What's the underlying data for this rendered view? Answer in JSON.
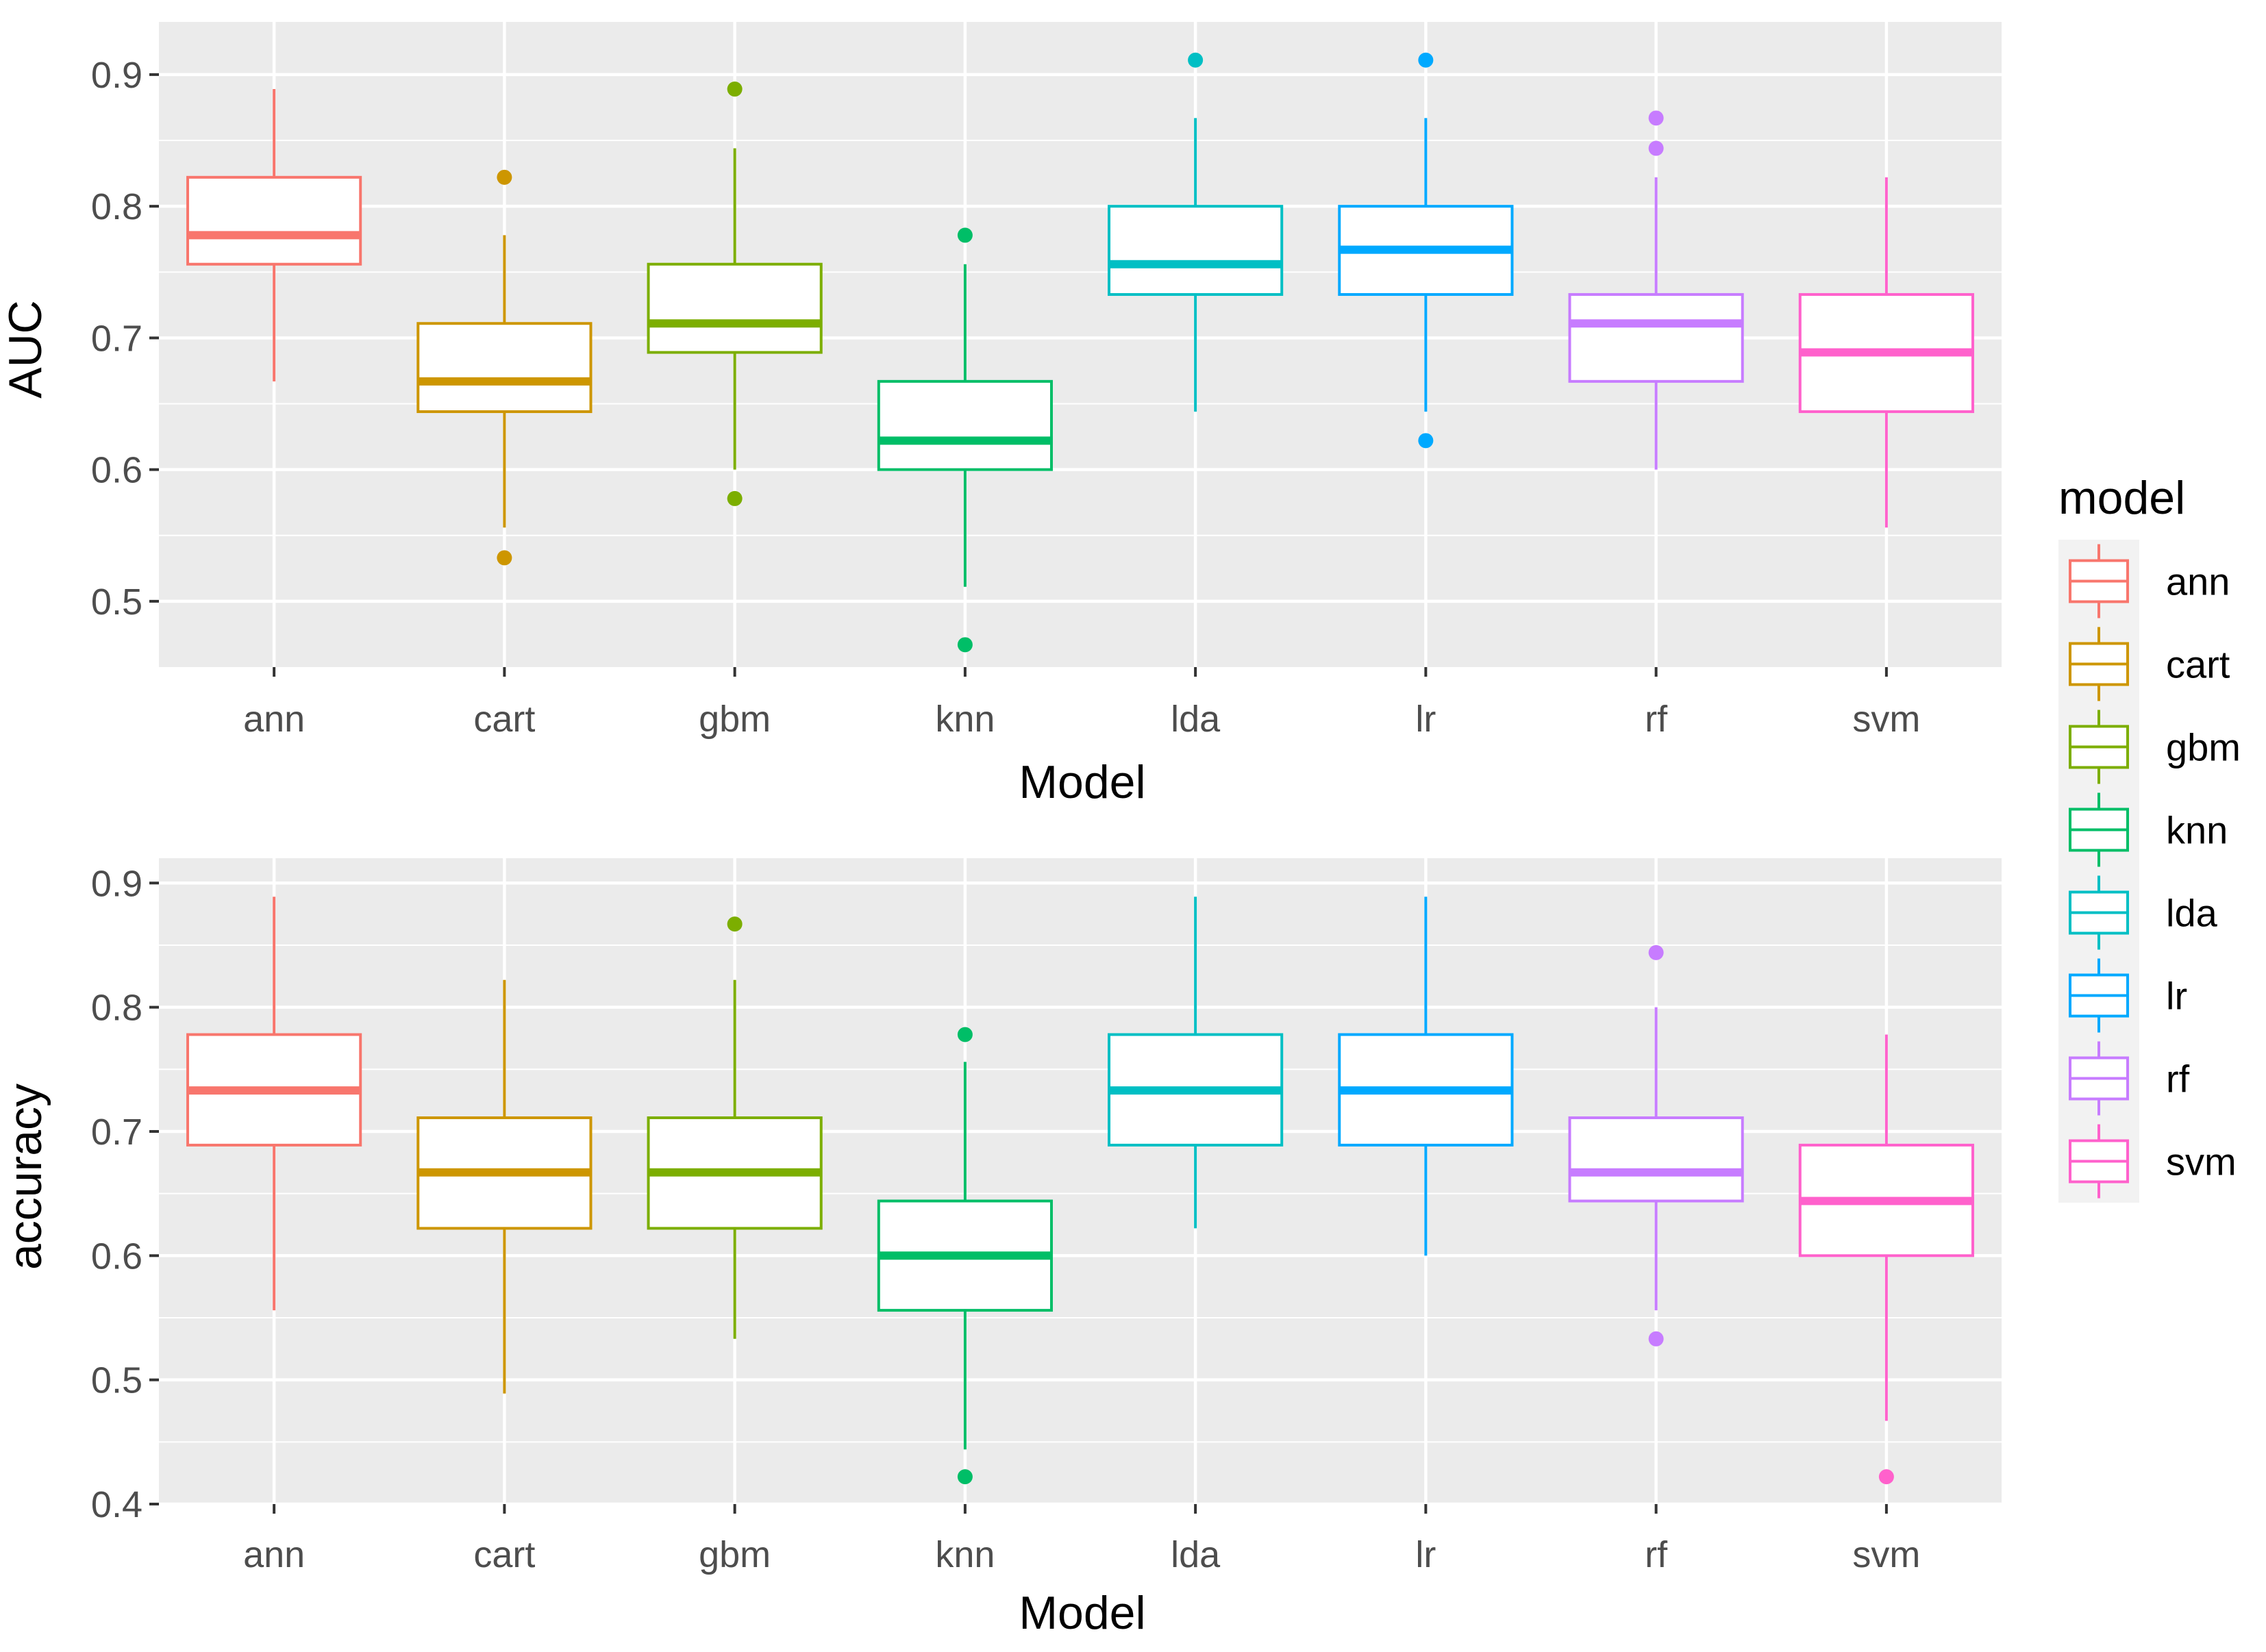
{
  "chart_data": [
    {
      "type": "boxplot",
      "ylabel": "AUC",
      "xlabel": "Model",
      "ylim": [
        0.45,
        0.94
      ],
      "yticks": [
        0.5,
        0.6,
        0.7,
        0.8,
        0.9
      ],
      "ytick_labels": [
        "0.5",
        "0.6",
        "0.7",
        "0.8",
        "0.9"
      ],
      "categories": [
        "ann",
        "cart",
        "gbm",
        "knn",
        "lda",
        "lr",
        "rf",
        "svm"
      ],
      "boxes": [
        {
          "name": "ann",
          "whisker_low": 0.667,
          "q1": 0.756,
          "median": 0.778,
          "q3": 0.822,
          "whisker_high": 0.889,
          "outliers": []
        },
        {
          "name": "cart",
          "whisker_low": 0.556,
          "q1": 0.644,
          "median": 0.667,
          "q3": 0.711,
          "whisker_high": 0.778,
          "outliers": [
            0.822,
            0.533
          ]
        },
        {
          "name": "gbm",
          "whisker_low": 0.6,
          "q1": 0.689,
          "median": 0.711,
          "q3": 0.756,
          "whisker_high": 0.844,
          "outliers": [
            0.889,
            0.578
          ]
        },
        {
          "name": "knn",
          "whisker_low": 0.511,
          "q1": 0.6,
          "median": 0.622,
          "q3": 0.667,
          "whisker_high": 0.756,
          "outliers": [
            0.778,
            0.467
          ]
        },
        {
          "name": "lda",
          "whisker_low": 0.644,
          "q1": 0.733,
          "median": 0.756,
          "q3": 0.8,
          "whisker_high": 0.867,
          "outliers": [
            0.911
          ]
        },
        {
          "name": "lr",
          "whisker_low": 0.644,
          "q1": 0.733,
          "median": 0.767,
          "q3": 0.8,
          "whisker_high": 0.867,
          "outliers": [
            0.911,
            0.622
          ]
        },
        {
          "name": "rf",
          "whisker_low": 0.6,
          "q1": 0.667,
          "median": 0.711,
          "q3": 0.733,
          "whisker_high": 0.822,
          "outliers": [
            0.867,
            0.844
          ]
        },
        {
          "name": "svm",
          "whisker_low": 0.556,
          "q1": 0.644,
          "median": 0.689,
          "q3": 0.733,
          "whisker_high": 0.822,
          "outliers": []
        }
      ]
    },
    {
      "type": "boxplot",
      "ylabel": "accuracy",
      "xlabel": "Model",
      "ylim": [
        0.4,
        0.92
      ],
      "yticks": [
        0.4,
        0.5,
        0.6,
        0.7,
        0.8,
        0.9
      ],
      "ytick_labels": [
        "0.4",
        "0.5",
        "0.6",
        "0.7",
        "0.8",
        "0.9"
      ],
      "categories": [
        "ann",
        "cart",
        "gbm",
        "knn",
        "lda",
        "lr",
        "rf",
        "svm"
      ],
      "boxes": [
        {
          "name": "ann",
          "whisker_low": 0.556,
          "q1": 0.689,
          "median": 0.733,
          "q3": 0.778,
          "whisker_high": 0.889,
          "outliers": []
        },
        {
          "name": "cart",
          "whisker_low": 0.489,
          "q1": 0.622,
          "median": 0.667,
          "q3": 0.711,
          "whisker_high": 0.822,
          "outliers": []
        },
        {
          "name": "gbm",
          "whisker_low": 0.533,
          "q1": 0.622,
          "median": 0.667,
          "q3": 0.711,
          "whisker_high": 0.822,
          "outliers": [
            0.867
          ]
        },
        {
          "name": "knn",
          "whisker_low": 0.444,
          "q1": 0.556,
          "median": 0.6,
          "q3": 0.644,
          "whisker_high": 0.756,
          "outliers": [
            0.778,
            0.422
          ]
        },
        {
          "name": "lda",
          "whisker_low": 0.622,
          "q1": 0.689,
          "median": 0.733,
          "q3": 0.778,
          "whisker_high": 0.889,
          "outliers": []
        },
        {
          "name": "lr",
          "whisker_low": 0.6,
          "q1": 0.689,
          "median": 0.733,
          "q3": 0.778,
          "whisker_high": 0.889,
          "outliers": []
        },
        {
          "name": "rf",
          "whisker_low": 0.556,
          "q1": 0.644,
          "median": 0.667,
          "q3": 0.711,
          "whisker_high": 0.8,
          "outliers": [
            0.844,
            0.533
          ]
        },
        {
          "name": "svm",
          "whisker_low": 0.467,
          "q1": 0.6,
          "median": 0.644,
          "q3": 0.689,
          "whisker_high": 0.778,
          "outliers": [
            0.422
          ]
        }
      ]
    }
  ],
  "legend": {
    "title": "model",
    "placement": "right",
    "items": [
      {
        "label": "ann",
        "color": "#F8766D"
      },
      {
        "label": "cart",
        "color": "#CD9600"
      },
      {
        "label": "gbm",
        "color": "#7CAE00"
      },
      {
        "label": "knn",
        "color": "#00BE67"
      },
      {
        "label": "lda",
        "color": "#00BFC4"
      },
      {
        "label": "lr",
        "color": "#00A9FF"
      },
      {
        "label": "rf",
        "color": "#C77CFF"
      },
      {
        "label": "svm",
        "color": "#FF61CC"
      }
    ]
  },
  "colors": {
    "panel_background": "#EBEBEB",
    "grid_major": "#FFFFFF",
    "box_fill": "#FFFFFF",
    "tick": "#333333"
  }
}
